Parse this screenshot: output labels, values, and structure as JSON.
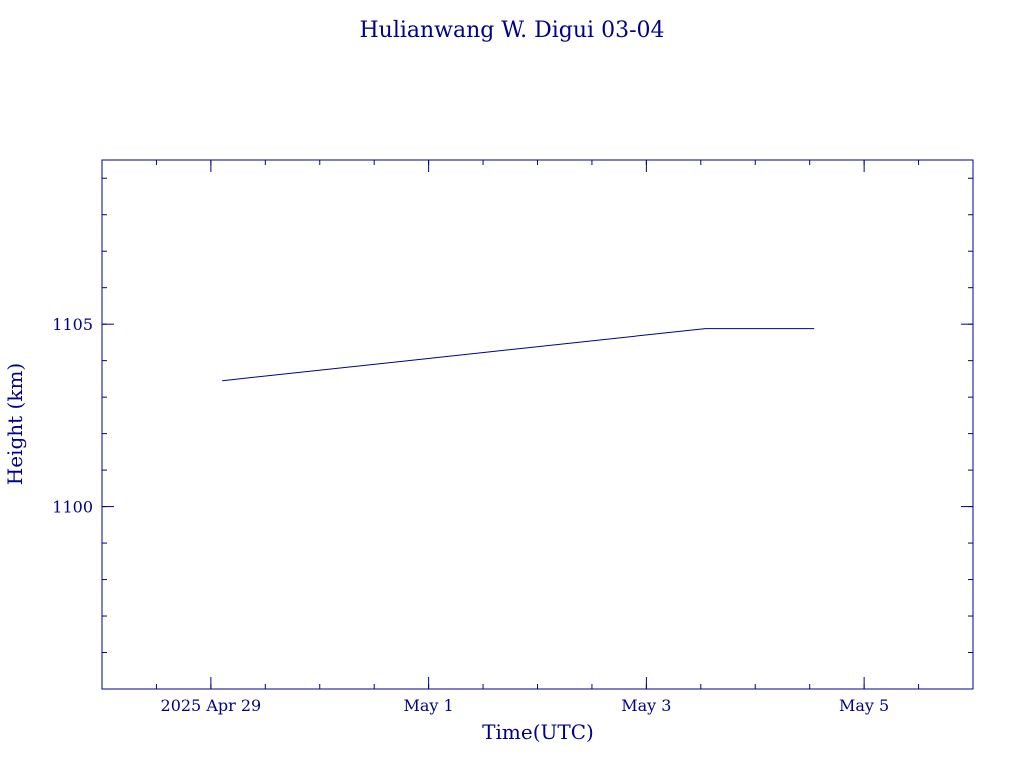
{
  "chart_data": {
    "type": "line",
    "title": "Hulianwang W. Digui 03-04",
    "xlabel": "Time(UTC)",
    "ylabel": "Height (km)",
    "x_axis_type": "date",
    "xlim": [
      "2025-04-28T00:00",
      "2025-05-06T00:00"
    ],
    "ylim": [
      1095,
      1109.5
    ],
    "x_ticks": [
      {
        "value": "2025-04-29T00:00",
        "label": "2025 Apr 29"
      },
      {
        "value": "2025-05-01T00:00",
        "label": "May  1"
      },
      {
        "value": "2025-05-03T00:00",
        "label": "May  3"
      },
      {
        "value": "2025-05-05T00:00",
        "label": "May  5"
      }
    ],
    "y_ticks": [
      {
        "value": 1100,
        "label": "1100"
      },
      {
        "value": 1105,
        "label": "1105"
      }
    ],
    "grid": false,
    "legend": "none",
    "colors": {
      "axis": "#00008b",
      "text": "#00008b",
      "line": "#00008b",
      "background": "#ffffff"
    },
    "series": [
      {
        "x": [
          "2025-04-29T02:30",
          "2025-05-03T13:00",
          "2025-05-04T13:00"
        ],
        "y": [
          1103.45,
          1104.88,
          1104.88
        ]
      }
    ]
  }
}
